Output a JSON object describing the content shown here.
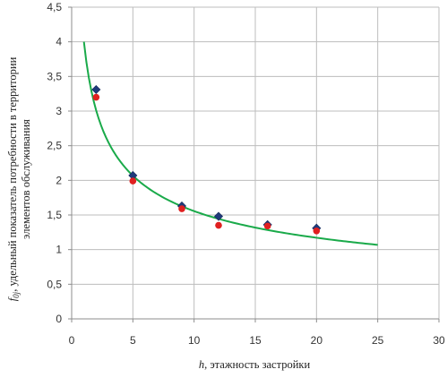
{
  "chart_data": {
    "type": "scatter",
    "title": "",
    "xlabel": {
      "symbol": "h",
      "text": ", этажность застройки"
    },
    "ylabel": {
      "symbol": "f",
      "subscript": "0j",
      "text_line1": ", удельный показатель потребности в территории",
      "text_line2": "элементов обслуживания"
    },
    "xlim": [
      0,
      30
    ],
    "ylim": [
      0,
      4.5
    ],
    "x_ticks": [
      "0",
      "5",
      "10",
      "15",
      "20",
      "25",
      "30"
    ],
    "y_ticks": [
      "0",
      "0,5",
      "1",
      "1,5",
      "2",
      "2,5",
      "3",
      "3,5",
      "4",
      "4,5"
    ],
    "grid": true,
    "legend": "none",
    "series": [
      {
        "marker": "diamond",
        "color": "#1f3a7a",
        "points": [
          {
            "x": 2,
            "y": 3.31
          },
          {
            "x": 5,
            "y": 2.07
          },
          {
            "x": 9,
            "y": 1.63
          },
          {
            "x": 12,
            "y": 1.48
          },
          {
            "x": 16,
            "y": 1.36
          },
          {
            "x": 20,
            "y": 1.31
          }
        ]
      },
      {
        "marker": "circle",
        "color": "#e02020",
        "points": [
          {
            "x": 2,
            "y": 3.2
          },
          {
            "x": 5,
            "y": 1.99
          },
          {
            "x": 9,
            "y": 1.59
          },
          {
            "x": 12,
            "y": 1.35
          },
          {
            "x": 16,
            "y": 1.34
          },
          {
            "x": 20,
            "y": 1.27
          }
        ]
      }
    ],
    "trendline": {
      "type": "power",
      "color": "#1aaa4a",
      "formula_a": 4.0,
      "formula_b": -0.41,
      "x_range": [
        1,
        25
      ]
    }
  }
}
